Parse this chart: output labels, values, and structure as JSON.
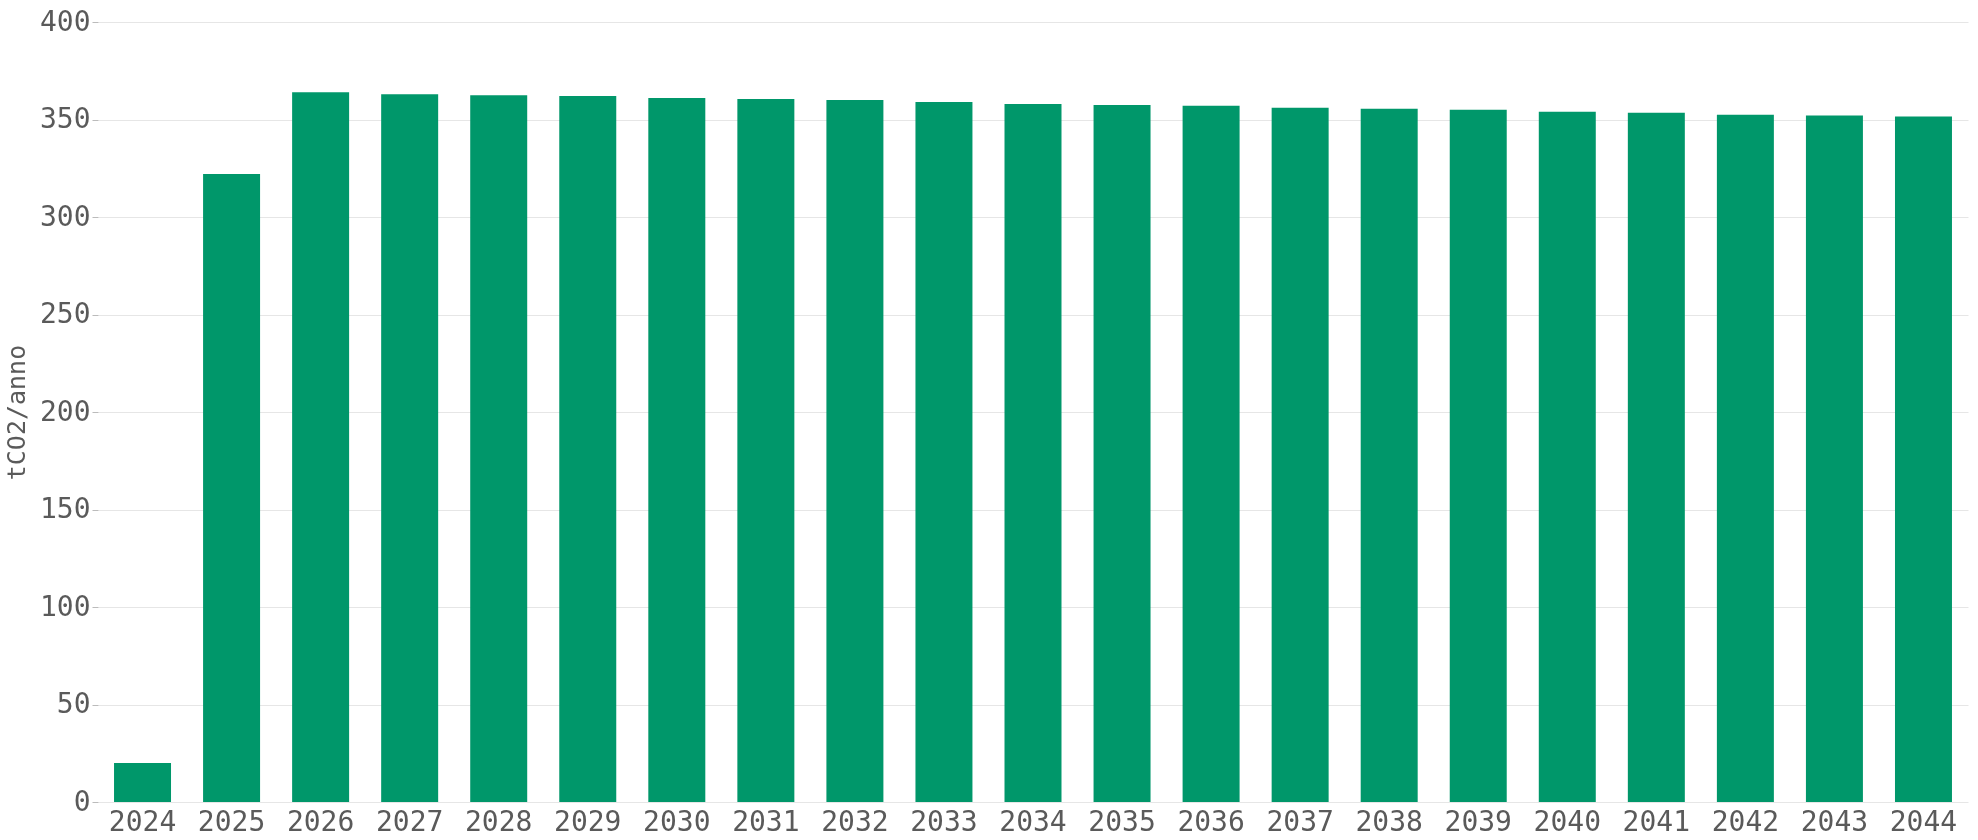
{
  "chart_data": {
    "type": "bar",
    "ylabel": "tCO2/anno",
    "categories": [
      "2024",
      "2025",
      "2026",
      "2027",
      "2028",
      "2029",
      "2030",
      "2031",
      "2032",
      "2033",
      "2034",
      "2035",
      "2036",
      "2037",
      "2038",
      "2039",
      "2040",
      "2041",
      "2042",
      "2043",
      "2044"
    ],
    "values": [
      20,
      322,
      364,
      363,
      362.5,
      362,
      361,
      360.5,
      360,
      359,
      358,
      357.5,
      357,
      356,
      355.5,
      355,
      354,
      353.5,
      352.5,
      352,
      351.5
    ],
    "color": "#00976a",
    "ylim": [
      0,
      400
    ],
    "yticks": [
      0,
      50,
      100,
      150,
      200,
      250,
      300,
      350,
      400
    ],
    "grid": "y"
  }
}
